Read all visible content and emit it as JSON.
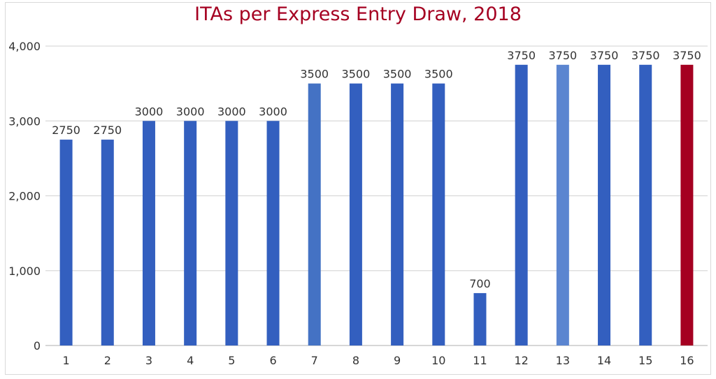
{
  "chart_data": {
    "type": "bar",
    "title": "ITAs per Express Entry Draw, 2018",
    "xlabel": "",
    "ylabel": "",
    "ylim": [
      0,
      4000
    ],
    "yticks": [
      "0",
      "1,000",
      "2,000",
      "3,000",
      "4,000"
    ],
    "ytick_values": [
      0,
      1000,
      2000,
      3000,
      4000
    ],
    "grid": true,
    "categories": [
      "1",
      "2",
      "3",
      "4",
      "5",
      "6",
      "7",
      "8",
      "9",
      "10",
      "11",
      "12",
      "13",
      "14",
      "15",
      "16"
    ],
    "values": [
      2750,
      2750,
      3000,
      3000,
      3000,
      3000,
      3500,
      3500,
      3500,
      3500,
      700,
      3750,
      3750,
      3750,
      3750,
      3750
    ],
    "data_labels": [
      "2750",
      "2750",
      "3000",
      "3000",
      "3000",
      "3000",
      "3500",
      "3500",
      "3500",
      "3500",
      "700",
      "3750",
      "3750",
      "3750",
      "3750",
      "3750"
    ],
    "bar_colors": [
      "#335fbf",
      "#335fbf",
      "#335fbf",
      "#335fbf",
      "#335fbf",
      "#335fbf",
      "#4472c4",
      "#335fbf",
      "#335fbf",
      "#335fbf",
      "#335fbf",
      "#335fbf",
      "#5b85d0",
      "#335fbf",
      "#335fbf",
      "#a50021"
    ]
  }
}
